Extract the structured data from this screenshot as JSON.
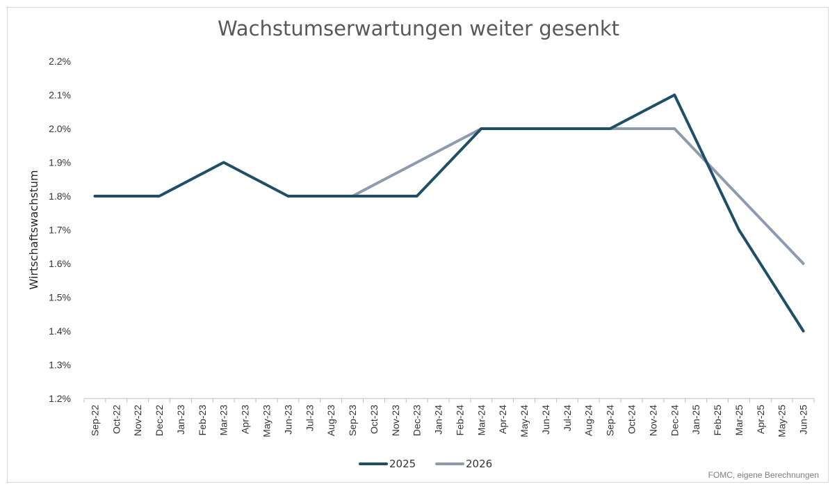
{
  "chart_data": {
    "type": "line",
    "title": "Wachstumserwartungen weiter gesenkt",
    "ylabel": "Wirtschaftswachstum",
    "xlabel": "",
    "source": "FOMC, eigene Berechnungen",
    "ylim": [
      1.2,
      2.2
    ],
    "ytick_step": 0.1,
    "ytick_labels": [
      "1.2%",
      "1.3%",
      "1.4%",
      "1.5%",
      "1.6%",
      "1.7%",
      "1.8%",
      "1.9%",
      "2.0%",
      "2.1%",
      "2.2%"
    ],
    "legend_position": "bottom-center",
    "grid": false,
    "categories": [
      "Sep-22",
      "Oct-22",
      "Nov-22",
      "Dec-22",
      "Jan-23",
      "Feb-23",
      "Mar-23",
      "Apr-23",
      "May-23",
      "Jun-23",
      "Jul-23",
      "Aug-23",
      "Sep-23",
      "Oct-23",
      "Nov-23",
      "Dec-23",
      "Jan-24",
      "Feb-24",
      "Mar-24",
      "Apr-24",
      "May-24",
      "Jun-24",
      "Jul-24",
      "Aug-24",
      "Sep-24",
      "Oct-24",
      "Nov-24",
      "Dec-24",
      "Jan-25",
      "Feb-25",
      "Mar-25",
      "Apr-25",
      "May-25",
      "Jun-25"
    ],
    "series": [
      {
        "name": "2025",
        "color": "#1f4e67",
        "points": [
          {
            "x": "Sep-22",
            "y": 1.8
          },
          {
            "x": "Dec-22",
            "y": 1.8
          },
          {
            "x": "Mar-23",
            "y": 1.9
          },
          {
            "x": "Jun-23",
            "y": 1.8
          },
          {
            "x": "Sep-23",
            "y": 1.8
          },
          {
            "x": "Dec-23",
            "y": 1.8
          },
          {
            "x": "Mar-24",
            "y": 2.0
          },
          {
            "x": "Jun-24",
            "y": 2.0
          },
          {
            "x": "Sep-24",
            "y": 2.0
          },
          {
            "x": "Dec-24",
            "y": 2.1
          },
          {
            "x": "Mar-25",
            "y": 1.7
          },
          {
            "x": "Jun-25",
            "y": 1.4
          }
        ]
      },
      {
        "name": "2026",
        "color": "#8c9bad",
        "points": [
          {
            "x": "Sep-23",
            "y": 1.8
          },
          {
            "x": "Mar-24",
            "y": 2.0
          },
          {
            "x": "Jun-24",
            "y": 2.0
          },
          {
            "x": "Sep-24",
            "y": 2.0
          },
          {
            "x": "Dec-24",
            "y": 2.0
          },
          {
            "x": "Mar-25",
            "y": 1.8
          },
          {
            "x": "Jun-25",
            "y": 1.6
          }
        ]
      }
    ]
  }
}
